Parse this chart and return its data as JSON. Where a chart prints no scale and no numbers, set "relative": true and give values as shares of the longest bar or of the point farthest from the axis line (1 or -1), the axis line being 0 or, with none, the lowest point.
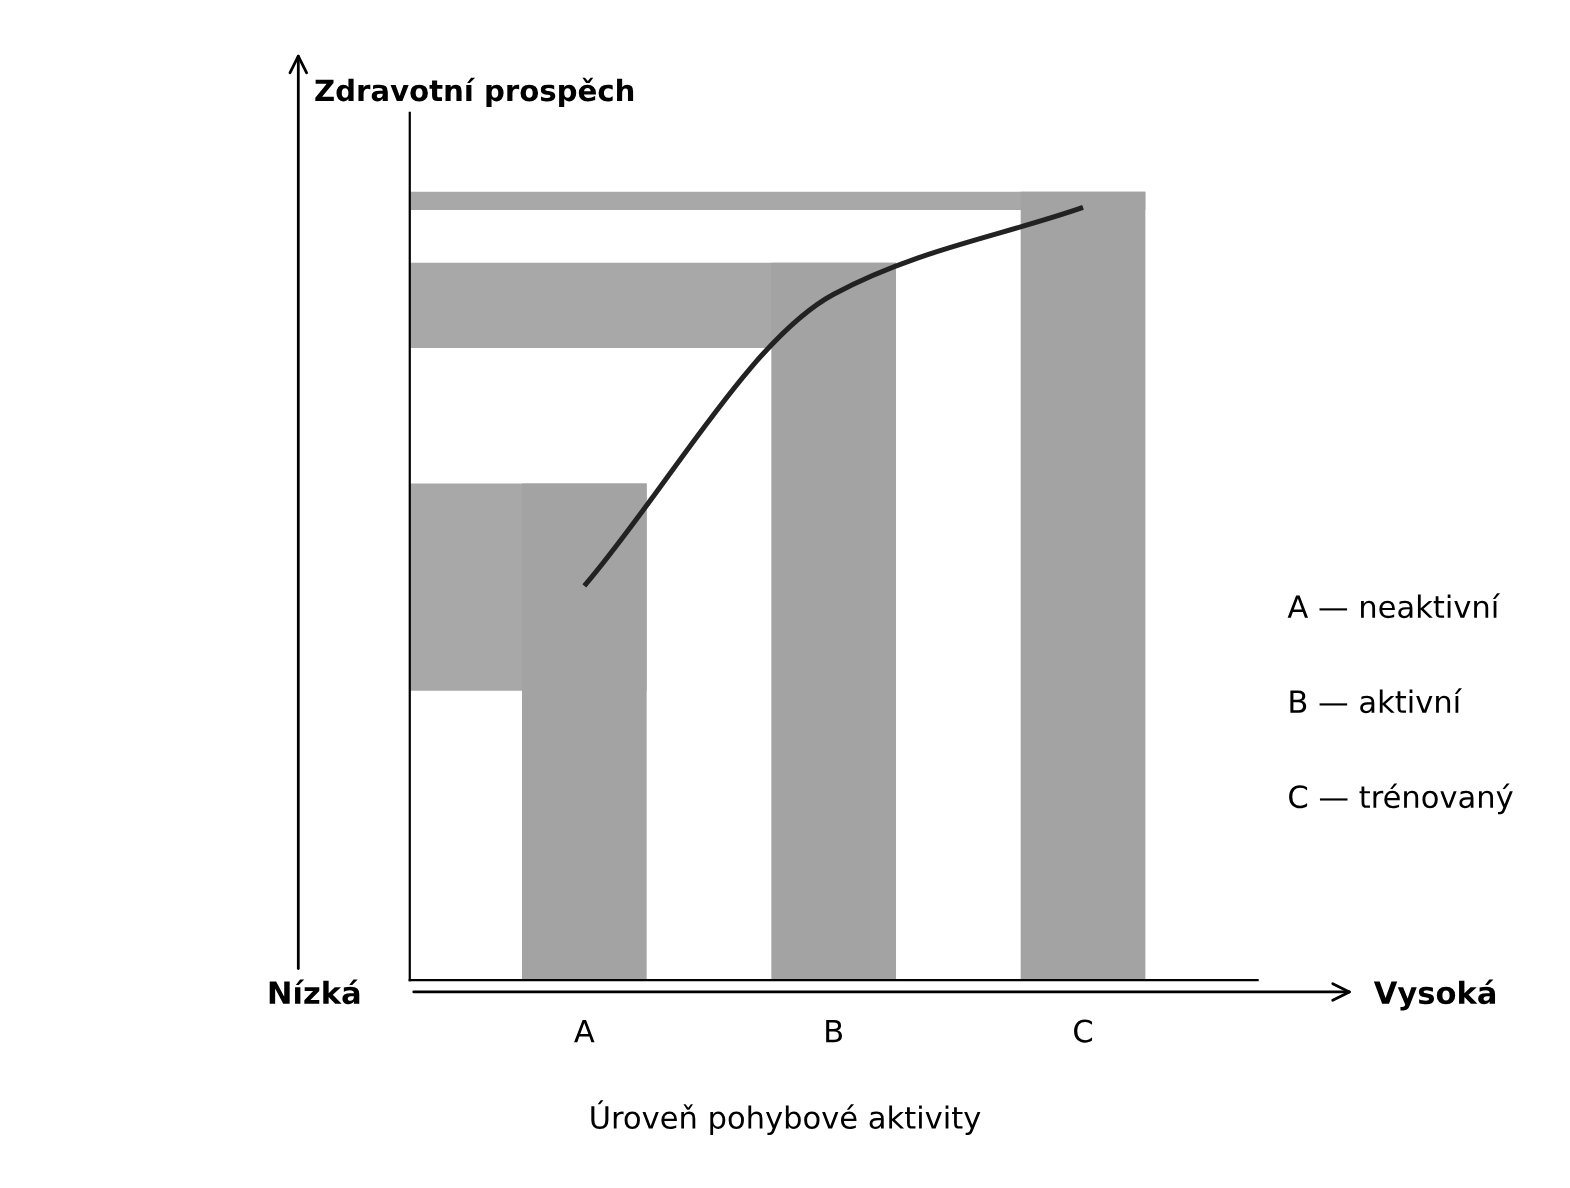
{
  "chart_data": {
    "type": "bar",
    "relative": true,
    "categories": [
      "A",
      "B",
      "C"
    ],
    "xlabel": "Úroveň pohybové aktivity",
    "ylabel": "Zdravotní prospěch",
    "series": [
      {
        "type": "bar",
        "color": "#a3a3a3",
        "values": [
          0.63,
          0.91,
          1.0
        ]
      },
      {
        "type": "line",
        "color": "#222222",
        "values": [
          0.5,
          0.87,
          0.98
        ]
      }
    ],
    "annotations": [
      "Nízká",
      "Vysoká",
      "A — neaktivní",
      "B — aktivní",
      "C — trénovaný"
    ],
    "grid": false,
    "legend": false
  }
}
